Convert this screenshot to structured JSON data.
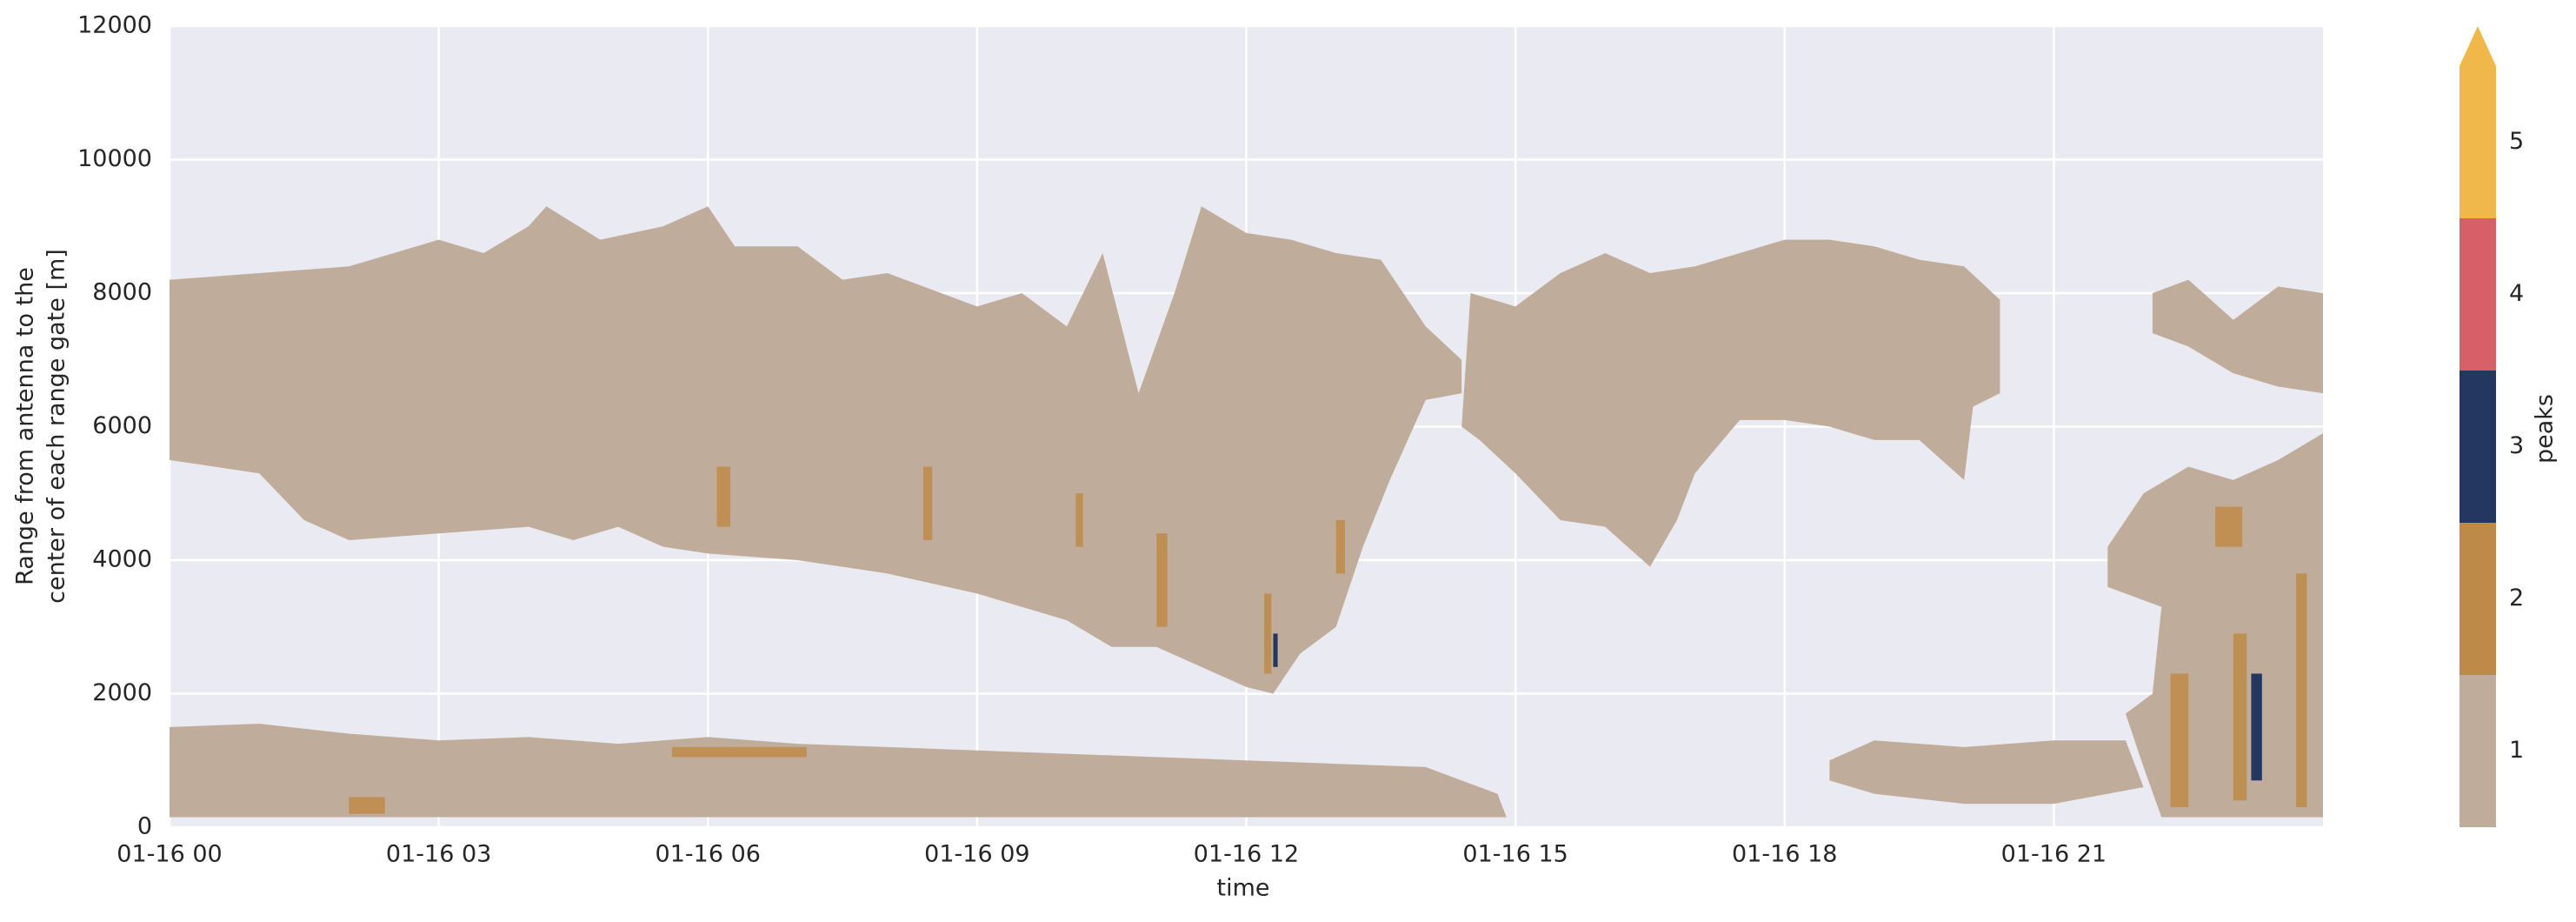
{
  "chart_data": {
    "type": "heatmap",
    "xlabel": "time",
    "ylabel": [
      "Range from antenna to the",
      "center of each range gate [m]"
    ],
    "xlim": [
      0,
      24
    ],
    "xticks": [
      {
        "value": 0,
        "label": "01-16 00"
      },
      {
        "value": 3,
        "label": "01-16 03"
      },
      {
        "value": 6,
        "label": "01-16 06"
      },
      {
        "value": 9,
        "label": "01-16 09"
      },
      {
        "value": 12,
        "label": "01-16 12"
      },
      {
        "value": 15,
        "label": "01-16 15"
      },
      {
        "value": 18,
        "label": "01-16 18"
      },
      {
        "value": 21,
        "label": "01-16 21"
      }
    ],
    "ylim": [
      0,
      12000
    ],
    "yticks": [
      0,
      2000,
      4000,
      6000,
      8000,
      10000,
      12000
    ],
    "grid": true,
    "colorbar": {
      "label": "peaks",
      "bins": [
        0.5,
        1.5,
        2.5,
        3.5,
        4.5,
        5.5
      ],
      "ticks": [
        1,
        2,
        3,
        4,
        5
      ],
      "colors": [
        "#c0ac9a",
        "#be8a47",
        "#233761",
        "#d65f68",
        "#f0b84a"
      ],
      "extend": "max"
    }
  }
}
